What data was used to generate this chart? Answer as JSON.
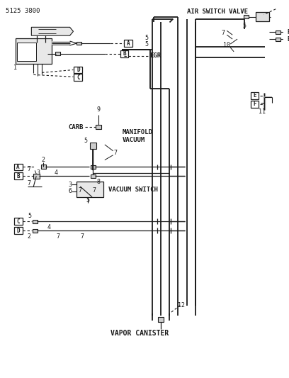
{
  "title": "5125 3800",
  "bg_color": "#ffffff",
  "line_color": "#1a1a1a",
  "labels": {
    "air_switch_valve": "AIR SWITCH VALVE",
    "egr": "EGR",
    "carb": "CARB",
    "manifold_vacuum": "MANIFOLD\nVACUUM",
    "vacuum_switch": "VACUUM SWITCH",
    "vapor_canister": "VAPOR CANISTER"
  }
}
